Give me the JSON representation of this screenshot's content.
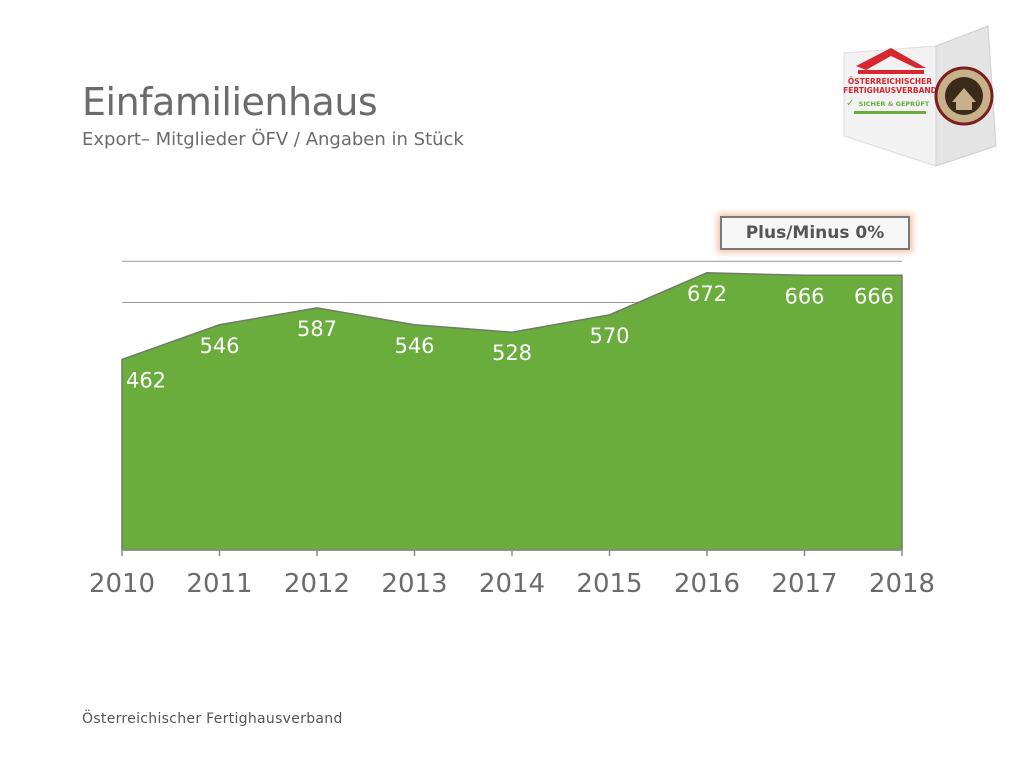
{
  "header": {
    "title": "Einfamilienhaus",
    "subtitle": "Export– Mitglieder ÖFV / Angaben in Stück"
  },
  "badge": {
    "label": "Plus/Minus 0%"
  },
  "footer": {
    "text": "Österreichischer Fertighausverband"
  },
  "logo": {
    "line1": "ÖSTERREICHISCHER",
    "line2": "FERTIGHAUSVERBAND",
    "line3": "SICHER & GEPRÜFT",
    "seal": "GÜTEZEICHEN FERTIGHAUS"
  },
  "colors": {
    "area_fill": "#6aad3d",
    "area_stroke": "#6e7c68",
    "grid": "#9a9a9a",
    "text": "#6b6b6b"
  },
  "chart_data": {
    "type": "area",
    "x": [
      "2010",
      "2011",
      "2012",
      "2013",
      "2014",
      "2015",
      "2016",
      "2017",
      "2018"
    ],
    "values": [
      462,
      546,
      587,
      546,
      528,
      570,
      672,
      666,
      666
    ],
    "data_labels": [
      "462",
      "546",
      "587",
      "546",
      "528",
      "570",
      "672",
      "666",
      "666"
    ],
    "ylim": [
      0,
      800
    ],
    "grid": true,
    "title": "",
    "xlabel": "",
    "ylabel": ""
  }
}
